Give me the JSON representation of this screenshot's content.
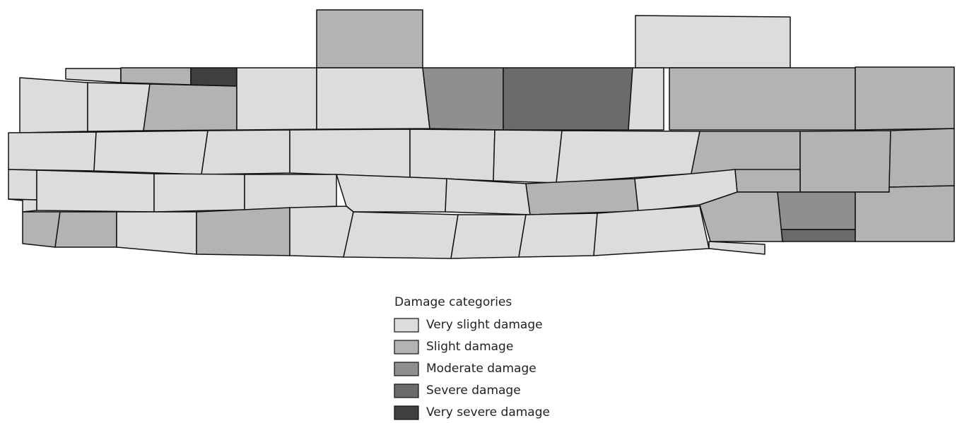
{
  "legend": {
    "title": "Damage categories",
    "items": [
      {
        "label": "Very slight damage",
        "color": "#dcdcdc"
      },
      {
        "label": "Slight damage",
        "color": "#b3b3b3"
      },
      {
        "label": "Moderate damage",
        "color": "#8f8f8f"
      },
      {
        "label": "Severe damage",
        "color": "#6b6b6b"
      },
      {
        "label": "Very severe damage",
        "color": "#3f3f3f"
      }
    ]
  }
}
